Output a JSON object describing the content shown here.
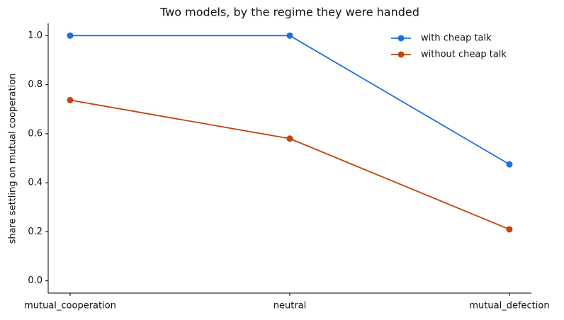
{
  "chart_data": {
    "type": "line",
    "title": "Two models, by the regime they were handed",
    "y_label": "share settling on mutual cooperation",
    "categories": [
      "mutual_cooperation",
      "neutral",
      "mutual_defection"
    ],
    "series": [
      {
        "name": "with cheap talk",
        "color": "#1f6fe0",
        "values": [
          1.0,
          1.0,
          0.475
        ]
      },
      {
        "name": "without cheap talk",
        "color": "#c0440f",
        "values": [
          0.737,
          0.58,
          0.21
        ]
      }
    ],
    "ylim": [
      -0.05,
      1.05
    ],
    "yticks": [
      {
        "value": 0,
        "label": "0.0"
      },
      0.2,
      0.4,
      0.6,
      0.8,
      {
        "value": 1,
        "label": "1.0"
      }
    ],
    "grid": false,
    "legend": "upper right"
  }
}
